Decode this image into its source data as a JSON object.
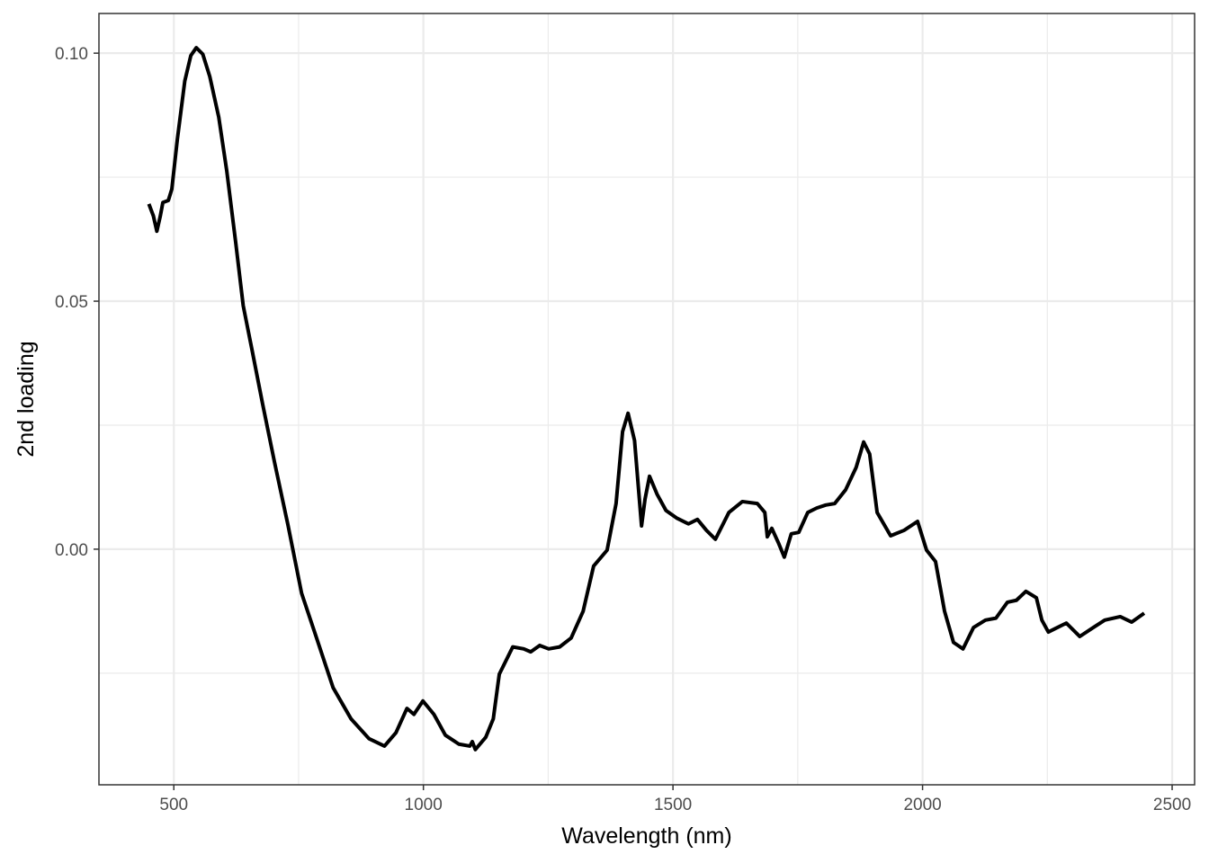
{
  "chart_data": {
    "type": "line",
    "x_label": "Wavelength (nm)",
    "y_label": "2nd loading",
    "xlim": [
      350,
      2545
    ],
    "ylim": [
      -0.0475,
      0.108
    ],
    "xticks": [
      500,
      1000,
      1500,
      2000,
      2500
    ],
    "yticks": [
      {
        "value": 0,
        "label": "0.00"
      },
      {
        "value": 0.05,
        "label": "0.05"
      },
      {
        "value": 0.1,
        "label": "0.10"
      }
    ],
    "minor_xticks": [
      750,
      1250,
      1750,
      2250
    ],
    "minor_yticks": [
      -0.025,
      0.025,
      0.075
    ],
    "grid": true,
    "series": [
      {
        "color": "#000000",
        "x": [
          450,
          459,
          466,
          473,
          478,
          489,
          496,
          507,
          522,
          534,
          545,
          558,
          572,
          590,
          606,
          624,
          639,
          657,
          678,
          702,
          729,
          756,
          783,
          819,
          855,
          891,
          922,
          945,
          967,
          981,
          999,
          1021,
          1044,
          1071,
          1093,
          1098,
          1104,
          1125,
          1140,
          1152,
          1179,
          1201,
          1215,
          1233,
          1251,
          1273,
          1296,
          1320,
          1341,
          1368,
          1386,
          1399,
          1410,
          1423,
          1437,
          1444,
          1453,
          1468,
          1486,
          1507,
          1531,
          1549,
          1567,
          1585,
          1612,
          1639,
          1669,
          1684,
          1689,
          1698,
          1712,
          1723,
          1737,
          1752,
          1770,
          1788,
          1806,
          1824,
          1846,
          1867,
          1882,
          1894,
          1909,
          1936,
          1963,
          1990,
          2008,
          2026,
          2044,
          2062,
          2081,
          2102,
          2126,
          2147,
          2170,
          2188,
          2207,
          2228,
          2239,
          2252,
          2270,
          2288,
          2315,
          2342,
          2365,
          2396,
          2419,
          2444
        ],
        "values": [
          0.0696,
          0.0672,
          0.0641,
          0.0672,
          0.0699,
          0.0703,
          0.0726,
          0.0826,
          0.0944,
          0.0995,
          0.1011,
          0.0998,
          0.0953,
          0.0871,
          0.0763,
          0.0618,
          0.0491,
          0.04,
          0.0292,
          0.0174,
          0.0047,
          -0.0089,
          -0.017,
          -0.0279,
          -0.0342,
          -0.0382,
          -0.0397,
          -0.037,
          -0.0321,
          -0.0333,
          -0.0306,
          -0.0333,
          -0.0375,
          -0.0393,
          -0.0397,
          -0.0388,
          -0.0404,
          -0.0379,
          -0.0342,
          -0.0252,
          -0.0197,
          -0.0201,
          -0.0207,
          -0.0194,
          -0.0201,
          -0.0197,
          -0.0179,
          -0.0125,
          -0.0034,
          -0.0002,
          0.0092,
          0.0237,
          0.0274,
          0.0219,
          0.0047,
          0.0101,
          0.0147,
          0.0111,
          0.0078,
          0.0063,
          0.0051,
          0.006,
          0.0038,
          0.002,
          0.0074,
          0.0096,
          0.0092,
          0.0074,
          0.0025,
          0.0042,
          0.0011,
          -0.0016,
          0.0031,
          0.0034,
          0.0074,
          0.0083,
          0.0089,
          0.0092,
          0.012,
          0.0165,
          0.0216,
          0.0192,
          0.0074,
          0.0027,
          0.0038,
          0.0056,
          -0.0002,
          -0.0025,
          -0.0125,
          -0.0188,
          -0.0201,
          -0.0158,
          -0.0143,
          -0.0139,
          -0.0107,
          -0.0103,
          -0.0085,
          -0.0098,
          -0.0143,
          -0.0167,
          -0.0158,
          -0.0149,
          -0.0176,
          -0.0158,
          -0.0143,
          -0.0136,
          -0.0147,
          -0.0129
        ]
      }
    ]
  }
}
